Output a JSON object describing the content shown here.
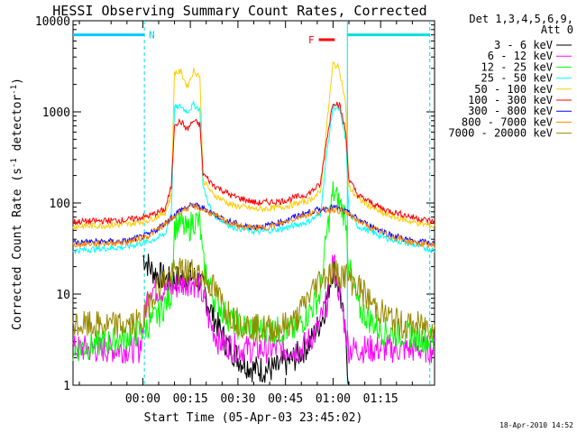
{
  "chart_data": {
    "type": "line",
    "title": "HESSI Observing Summary Count Rates, Corrected",
    "xlabel": "Start Time (05-Apr-03 23:45:02)",
    "ylabel_main": "Corrected Count Rate (s",
    "ylabel_exp1": "-1",
    "ylabel_mid": " detector",
    "ylabel_exp2": "-1",
    "ylabel_end": ")",
    "yscale": "log",
    "ylim": [
      1,
      10000
    ],
    "xlim": [
      -22,
      92
    ],
    "x_unit": "minutes after 00:00",
    "x_ticks": [
      {
        "x": 0,
        "label": "00:00"
      },
      {
        "x": 15,
        "label": "00:15"
      },
      {
        "x": 30,
        "label": "00:30"
      },
      {
        "x": 45,
        "label": "00:45"
      },
      {
        "x": 60,
        "label": "01:00"
      },
      {
        "x": 75,
        "label": "01:15"
      }
    ],
    "y_ticks": [
      {
        "y": 1,
        "label": "1"
      },
      {
        "y": 10,
        "label": "10"
      },
      {
        "y": 100,
        "label": "100"
      },
      {
        "y": 1000,
        "label": "1000"
      },
      {
        "y": 10000,
        "label": "10000"
      }
    ],
    "legend_header": [
      "Det 1,3,4,5,6,9,",
      "Att 0"
    ],
    "legend_placement": "right, outside plot",
    "series": [
      {
        "name": "3 - 6 keV",
        "color": "#000000",
        "points": [
          [
            0,
            26
          ],
          [
            3,
            18
          ],
          [
            8,
            14
          ],
          [
            15,
            16
          ],
          [
            18,
            14
          ],
          [
            22,
            6
          ],
          [
            26,
            3
          ],
          [
            30,
            2
          ],
          [
            35,
            1.5
          ],
          [
            42,
            1.5
          ],
          [
            48,
            2
          ],
          [
            53,
            3
          ],
          [
            57,
            6
          ],
          [
            60,
            20
          ],
          [
            62,
            12
          ],
          [
            64,
            3
          ],
          [
            65,
            1
          ]
        ]
      },
      {
        "name": "6 - 12 keV",
        "color": "#ff00ff",
        "points": [
          [
            -22,
            2.5
          ],
          [
            -1,
            2.5
          ],
          [
            2,
            12
          ],
          [
            6,
            11
          ],
          [
            10,
            12
          ],
          [
            15,
            14
          ],
          [
            18,
            12
          ],
          [
            21,
            5
          ],
          [
            24,
            3
          ],
          [
            30,
            2.5
          ],
          [
            40,
            2.5
          ],
          [
            50,
            2.5
          ],
          [
            55,
            4
          ],
          [
            58,
            8
          ],
          [
            60,
            25
          ],
          [
            62,
            10
          ],
          [
            65,
            2.5
          ],
          [
            92,
            2.5
          ]
        ]
      },
      {
        "name": "12 - 25 keV",
        "color": "#00ff00",
        "points": [
          [
            -22,
            2.5
          ],
          [
            -10,
            3
          ],
          [
            0,
            4
          ],
          [
            5,
            6
          ],
          [
            9,
            10
          ],
          [
            10,
            55
          ],
          [
            12,
            60
          ],
          [
            14,
            48
          ],
          [
            16,
            65
          ],
          [
            18,
            60
          ],
          [
            19,
            22
          ],
          [
            22,
            10
          ],
          [
            26,
            6
          ],
          [
            30,
            4.5
          ],
          [
            40,
            4
          ],
          [
            48,
            4
          ],
          [
            52,
            6
          ],
          [
            56,
            10
          ],
          [
            58,
            45
          ],
          [
            60,
            130
          ],
          [
            62,
            100
          ],
          [
            64,
            70
          ],
          [
            65,
            20
          ],
          [
            68,
            7
          ],
          [
            75,
            4
          ],
          [
            85,
            3.5
          ],
          [
            92,
            3
          ]
        ]
      },
      {
        "name": "25 - 50 keV",
        "color": "#00ffff",
        "points": [
          [
            -22,
            30
          ],
          [
            -5,
            33
          ],
          [
            2,
            38
          ],
          [
            7,
            45
          ],
          [
            9,
            80
          ],
          [
            10,
            1100
          ],
          [
            12,
            1150
          ],
          [
            14,
            1000
          ],
          [
            16,
            1200
          ],
          [
            18,
            1050
          ],
          [
            19,
            150
          ],
          [
            22,
            75
          ],
          [
            28,
            55
          ],
          [
            36,
            48
          ],
          [
            44,
            52
          ],
          [
            52,
            62
          ],
          [
            56,
            75
          ],
          [
            58,
            350
          ],
          [
            60,
            1150
          ],
          [
            62,
            1050
          ],
          [
            64,
            500
          ],
          [
            65,
            80
          ],
          [
            68,
            55
          ],
          [
            76,
            42
          ],
          [
            85,
            35
          ],
          [
            92,
            30
          ]
        ]
      },
      {
        "name": "50 - 100 keV",
        "color": "#ffcc00",
        "points": [
          [
            -22,
            55
          ],
          [
            -5,
            58
          ],
          [
            2,
            65
          ],
          [
            7,
            78
          ],
          [
            9,
            120
          ],
          [
            10,
            2700
          ],
          [
            12,
            2750
          ],
          [
            14,
            1900
          ],
          [
            16,
            2800
          ],
          [
            18,
            2500
          ],
          [
            19,
            180
          ],
          [
            22,
            125
          ],
          [
            28,
            95
          ],
          [
            36,
            85
          ],
          [
            44,
            90
          ],
          [
            52,
            105
          ],
          [
            56,
            130
          ],
          [
            58,
            700
          ],
          [
            60,
            3400
          ],
          [
            62,
            3000
          ],
          [
            64,
            1200
          ],
          [
            65,
            150
          ],
          [
            68,
            110
          ],
          [
            76,
            75
          ],
          [
            85,
            62
          ],
          [
            92,
            55
          ]
        ]
      },
      {
        "name": "100 - 300 keV",
        "color": "#ff0000",
        "points": [
          [
            -22,
            62
          ],
          [
            -5,
            65
          ],
          [
            2,
            72
          ],
          [
            7,
            85
          ],
          [
            9,
            150
          ],
          [
            10,
            750
          ],
          [
            12,
            780
          ],
          [
            14,
            640
          ],
          [
            16,
            800
          ],
          [
            18,
            720
          ],
          [
            19,
            210
          ],
          [
            22,
            160
          ],
          [
            28,
            120
          ],
          [
            36,
            100
          ],
          [
            44,
            105
          ],
          [
            52,
            125
          ],
          [
            56,
            160
          ],
          [
            58,
            500
          ],
          [
            60,
            1300
          ],
          [
            62,
            1200
          ],
          [
            64,
            600
          ],
          [
            65,
            180
          ],
          [
            68,
            120
          ],
          [
            76,
            85
          ],
          [
            85,
            70
          ],
          [
            92,
            62
          ]
        ]
      },
      {
        "name": "300 - 800 keV",
        "color": "#0000ff",
        "points": [
          [
            -22,
            37
          ],
          [
            -5,
            38
          ],
          [
            2,
            45
          ],
          [
            7,
            60
          ],
          [
            12,
            85
          ],
          [
            16,
            95
          ],
          [
            20,
            85
          ],
          [
            26,
            65
          ],
          [
            32,
            55
          ],
          [
            38,
            55
          ],
          [
            44,
            62
          ],
          [
            50,
            75
          ],
          [
            56,
            85
          ],
          [
            60,
            90
          ],
          [
            64,
            80
          ],
          [
            70,
            60
          ],
          [
            78,
            45
          ],
          [
            85,
            38
          ],
          [
            92,
            36
          ]
        ]
      },
      {
        "name": "800 - 7000 keV",
        "color": "#ff8800",
        "points": [
          [
            -22,
            35
          ],
          [
            -5,
            37
          ],
          [
            2,
            44
          ],
          [
            7,
            58
          ],
          [
            12,
            82
          ],
          [
            16,
            92
          ],
          [
            20,
            82
          ],
          [
            26,
            63
          ],
          [
            32,
            54
          ],
          [
            38,
            53
          ],
          [
            44,
            60
          ],
          [
            50,
            72
          ],
          [
            56,
            82
          ],
          [
            60,
            86
          ],
          [
            64,
            78
          ],
          [
            70,
            58
          ],
          [
            78,
            43
          ],
          [
            85,
            37
          ],
          [
            92,
            34
          ]
        ]
      },
      {
        "name": "7000 - 20000 keV",
        "color": "#998800",
        "points": [
          [
            -22,
            4.5
          ],
          [
            -5,
            4.5
          ],
          [
            0,
            5
          ],
          [
            3,
            10
          ],
          [
            7,
            15
          ],
          [
            11,
            17.5
          ],
          [
            15,
            18
          ],
          [
            18,
            17
          ],
          [
            22,
            12
          ],
          [
            26,
            7
          ],
          [
            30,
            5
          ],
          [
            36,
            4.2
          ],
          [
            42,
            4.2
          ],
          [
            48,
            5
          ],
          [
            52,
            9
          ],
          [
            56,
            15
          ],
          [
            60,
            17.5
          ],
          [
            64,
            16
          ],
          [
            68,
            12
          ],
          [
            72,
            8
          ],
          [
            76,
            6
          ],
          [
            82,
            4.5
          ],
          [
            92,
            4.5
          ]
        ]
      }
    ],
    "annotations": [
      {
        "text": "N",
        "color": "#00ccff",
        "x_range": [
          -22,
          0.5
        ],
        "y": 7000
      },
      {
        "text": "F",
        "color": "#ff0000",
        "x_range": [
          55.5,
          60.5
        ],
        "y": 6200
      }
    ],
    "cyan_vlines": [
      0.5,
      64.5,
      90.5
    ],
    "timestamp": "18-Apr-2010 14:52"
  }
}
